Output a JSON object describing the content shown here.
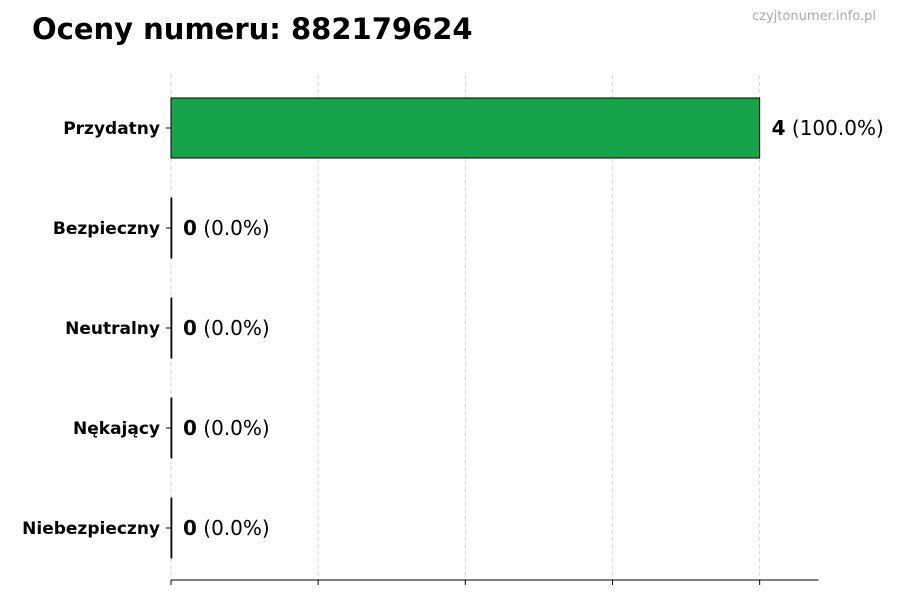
{
  "title": "Oceny numeru: 882179624",
  "watermark": "czyjtonumer.info.pl",
  "chart_data": {
    "type": "bar",
    "orientation": "horizontal",
    "title": "Oceny numeru: 882179624",
    "categories": [
      "Przydatny",
      "Bezpieczny",
      "Neutralny",
      "Nękający",
      "Niebezpieczny"
    ],
    "values": [
      4,
      0,
      0,
      0,
      0
    ],
    "labels": [
      {
        "count": "4",
        "pct": "(100.0%)"
      },
      {
        "count": "0",
        "pct": "(0.0%)"
      },
      {
        "count": "0",
        "pct": "(0.0%)"
      },
      {
        "count": "0",
        "pct": "(0.0%)"
      },
      {
        "count": "0",
        "pct": "(0.0%)"
      }
    ],
    "xlim": [
      0,
      4.4
    ],
    "xticks": [
      0,
      1,
      2,
      3,
      4
    ],
    "xtick_labels_visible": false,
    "grid": "vertical dashed",
    "colors": {
      "bar": "#17a349",
      "edge": "#000000",
      "grid": "#cccccc"
    }
  }
}
